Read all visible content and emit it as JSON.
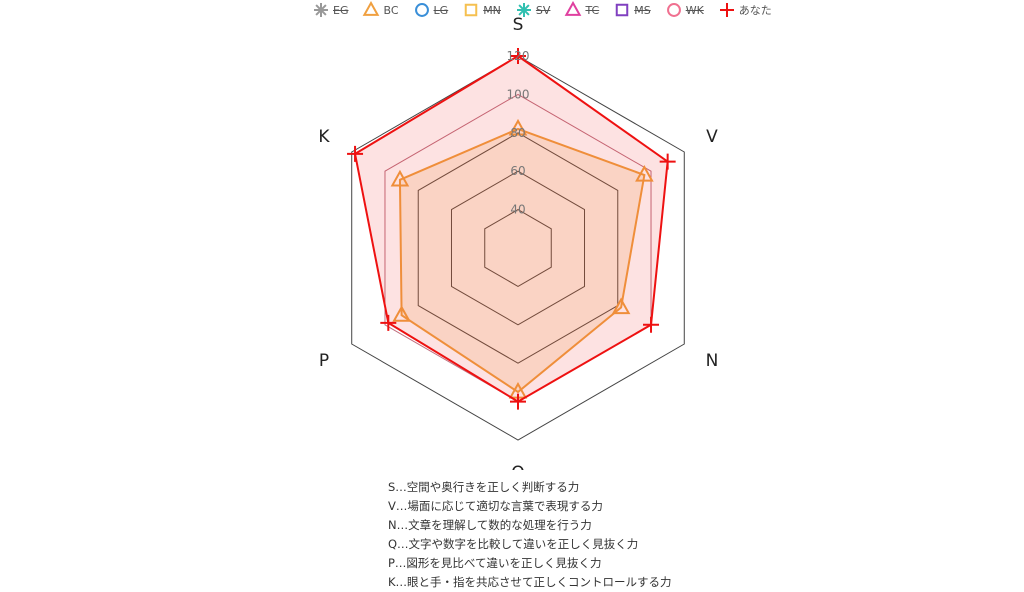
{
  "chart_data": {
    "type": "radar",
    "axes": [
      "S",
      "V",
      "N",
      "Q",
      "P",
      "K"
    ],
    "r_range": [
      20,
      120
    ],
    "r_ticks": [
      40,
      60,
      80,
      100,
      120
    ],
    "legend_placement": "top",
    "series": [
      {
        "name": "EG",
        "color": "#999999",
        "marker": "asterisk",
        "hidden": true,
        "values": []
      },
      {
        "name": "BC",
        "color": "#f0a040",
        "marker": "triangle",
        "hidden": false,
        "values": [
          82,
          96,
          82,
          95,
          90,
          91
        ]
      },
      {
        "name": "LG",
        "color": "#3a8fd8",
        "marker": "circle",
        "hidden": true,
        "values": []
      },
      {
        "name": "MN",
        "color": "#f5c050",
        "marker": "square",
        "hidden": true,
        "values": []
      },
      {
        "name": "SV",
        "color": "#30c0b0",
        "marker": "asterisk",
        "hidden": true,
        "values": []
      },
      {
        "name": "TC",
        "color": "#e040a0",
        "marker": "triangle",
        "hidden": true,
        "values": []
      },
      {
        "name": "MS",
        "color": "#8040c0",
        "marker": "square",
        "hidden": true,
        "values": []
      },
      {
        "name": "WK",
        "color": "#f07090",
        "marker": "circle",
        "hidden": true,
        "values": []
      },
      {
        "name": "あなた",
        "color": "#ee1111",
        "marker": "cross",
        "hidden": false,
        "values": [
          120,
          110,
          100,
          100,
          98,
          118
        ]
      }
    ]
  },
  "notes": [
    "S…空間や奥行きを正しく判断する力",
    "V…場面に応じて適切な言葉で表現する力",
    "N…文章を理解して数的な処理を行う力",
    "Q…文字や数字を比較して違いを正しく見抜く力",
    "P…図形を見比べて違いを正しく見抜く力",
    "K…眼と手・指を共応させて正しくコントロールする力"
  ]
}
